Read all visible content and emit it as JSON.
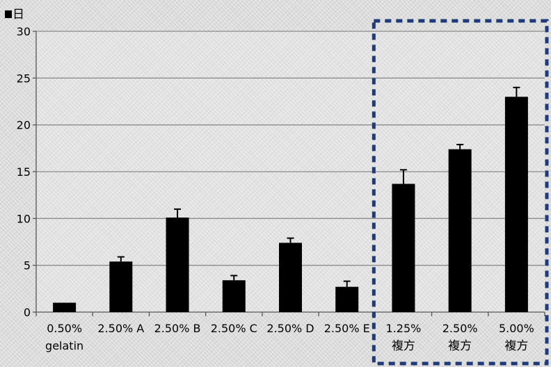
{
  "chart_data": {
    "type": "bar",
    "unit_label": "日",
    "ylim": [
      0,
      30
    ],
    "yticks": [
      0,
      5,
      10,
      15,
      20,
      25,
      30
    ],
    "grid": true,
    "categories": [
      [
        "0.50%",
        "gelatin"
      ],
      [
        "2.50% A"
      ],
      [
        "2.50% B"
      ],
      [
        "2.50% C"
      ],
      [
        "2.50% D"
      ],
      [
        "2.50% E"
      ],
      [
        "1.25%",
        "複方"
      ],
      [
        "2.50%",
        "複方"
      ],
      [
        "5.00%",
        "複方"
      ]
    ],
    "values": [
      1.0,
      5.4,
      10.1,
      3.4,
      7.4,
      2.7,
      13.7,
      17.4,
      23.0
    ],
    "error": [
      0.0,
      0.5,
      0.9,
      0.5,
      0.5,
      0.6,
      1.5,
      0.5,
      1.0
    ],
    "colors": {
      "bar": "#000000",
      "grid": "#8c8c8c",
      "highlight_box": "#1f3a7a"
    },
    "highlight_group": [
      6,
      7,
      8
    ]
  }
}
